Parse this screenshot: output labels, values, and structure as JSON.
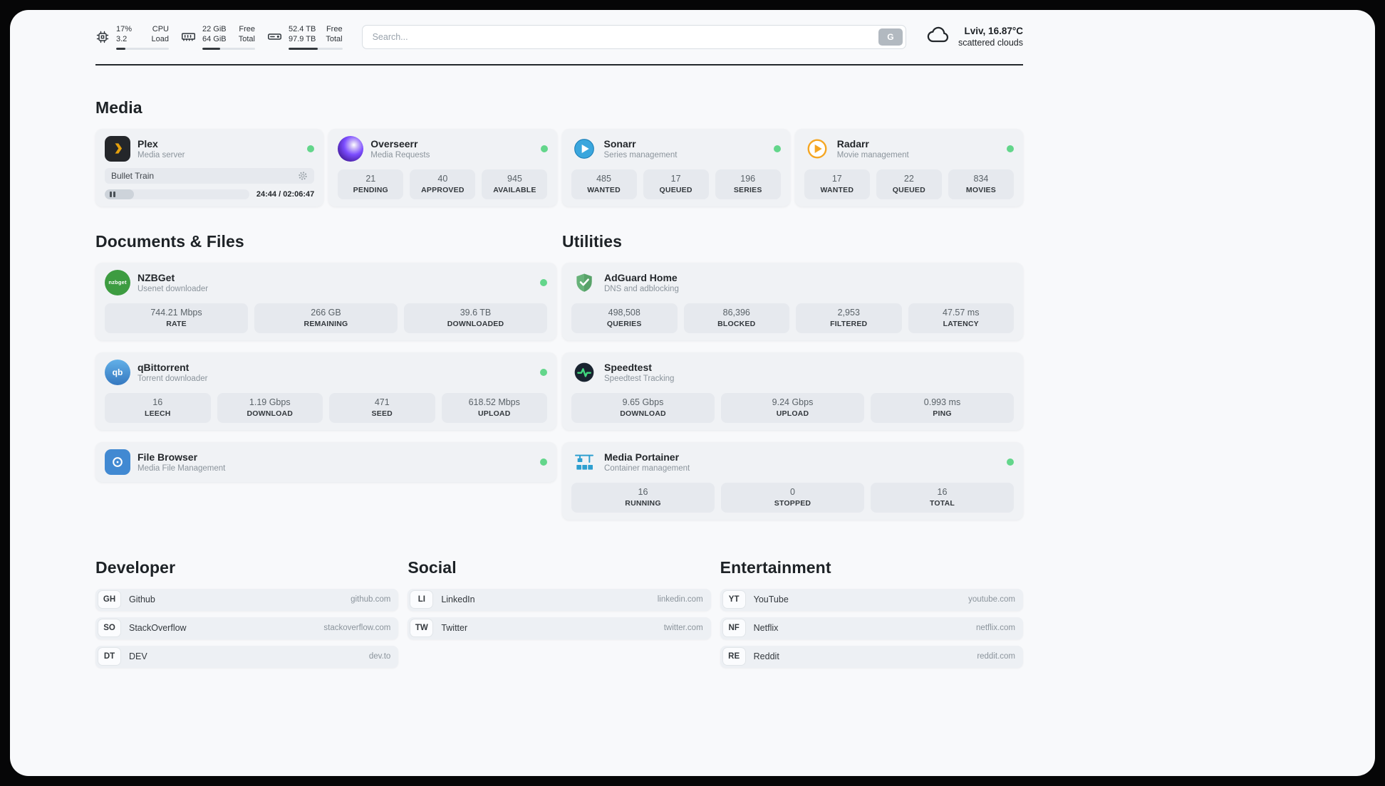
{
  "topbar": {
    "cpu": {
      "value_top": "17%",
      "value_bottom": "3.2",
      "label_top": "CPU",
      "label_bottom": "Load",
      "progress": 17
    },
    "ram": {
      "value_top": "22 GiB",
      "value_bottom": "64 GiB",
      "label_top": "Free",
      "label_bottom": "Total",
      "progress": 34
    },
    "disk": {
      "value_top": "52.4 TB",
      "value_bottom": "97.9 TB",
      "label_top": "Free",
      "label_bottom": "Total",
      "progress": 54
    },
    "search": {
      "placeholder": "Search...",
      "button_label": "G"
    },
    "weather": {
      "location": "Lviv, 16.87°C",
      "condition": "scattered clouds"
    }
  },
  "media": {
    "title": "Media",
    "plex": {
      "name": "Plex",
      "subtitle": "Media server",
      "now_playing": "Bullet Train",
      "time_display": "24:44 / 02:06:47",
      "progress": 20
    },
    "overseerr": {
      "name": "Overseerr",
      "subtitle": "Media Requests",
      "stats": [
        {
          "value": "21",
          "label": "PENDING"
        },
        {
          "value": "40",
          "label": "APPROVED"
        },
        {
          "value": "945",
          "label": "AVAILABLE"
        }
      ]
    },
    "sonarr": {
      "name": "Sonarr",
      "subtitle": "Series management",
      "stats": [
        {
          "value": "485",
          "label": "WANTED"
        },
        {
          "value": "17",
          "label": "QUEUED"
        },
        {
          "value": "196",
          "label": "SERIES"
        }
      ]
    },
    "radarr": {
      "name": "Radarr",
      "subtitle": "Movie management",
      "stats": [
        {
          "value": "17",
          "label": "WANTED"
        },
        {
          "value": "22",
          "label": "QUEUED"
        },
        {
          "value": "834",
          "label": "MOVIES"
        }
      ]
    }
  },
  "documents": {
    "title": "Documents & Files",
    "nzbget": {
      "name": "NZBGet",
      "subtitle": "Usenet downloader",
      "icon_text": "nzbget",
      "stats": [
        {
          "value": "744.21 Mbps",
          "label": "RATE"
        },
        {
          "value": "266 GB",
          "label": "REMAINING"
        },
        {
          "value": "39.6 TB",
          "label": "DOWNLOADED"
        }
      ]
    },
    "qbittorrent": {
      "name": "qBittorrent",
      "subtitle": "Torrent downloader",
      "icon_text": "qb",
      "stats": [
        {
          "value": "16",
          "label": "LEECH"
        },
        {
          "value": "1.19 Gbps",
          "label": "DOWNLOAD"
        },
        {
          "value": "471",
          "label": "SEED"
        },
        {
          "value": "618.52 Mbps",
          "label": "UPLOAD"
        }
      ]
    },
    "filebrowser": {
      "name": "File Browser",
      "subtitle": "Media File Management"
    }
  },
  "utilities": {
    "title": "Utilities",
    "adguard": {
      "name": "AdGuard Home",
      "subtitle": "DNS and adblocking",
      "stats": [
        {
          "value": "498,508",
          "label": "QUERIES"
        },
        {
          "value": "86,396",
          "label": "BLOCKED"
        },
        {
          "value": "2,953",
          "label": "FILTERED"
        },
        {
          "value": "47.57 ms",
          "label": "LATENCY"
        }
      ]
    },
    "speedtest": {
      "name": "Speedtest",
      "subtitle": "Speedtest Tracking",
      "stats": [
        {
          "value": "9.65 Gbps",
          "label": "DOWNLOAD"
        },
        {
          "value": "9.24 Gbps",
          "label": "UPLOAD"
        },
        {
          "value": "0.993 ms",
          "label": "PING"
        }
      ]
    },
    "portainer": {
      "name": "Media Portainer",
      "subtitle": "Container management",
      "stats": [
        {
          "value": "16",
          "label": "RUNNING"
        },
        {
          "value": "0",
          "label": "STOPPED"
        },
        {
          "value": "16",
          "label": "TOTAL"
        }
      ]
    }
  },
  "bookmarks": {
    "developer": {
      "title": "Developer",
      "items": [
        {
          "abbr": "GH",
          "name": "Github",
          "url": "github.com"
        },
        {
          "abbr": "SO",
          "name": "StackOverflow",
          "url": "stackoverflow.com"
        },
        {
          "abbr": "DT",
          "name": "DEV",
          "url": "dev.to"
        }
      ]
    },
    "social": {
      "title": "Social",
      "items": [
        {
          "abbr": "LI",
          "name": "LinkedIn",
          "url": "linkedin.com"
        },
        {
          "abbr": "TW",
          "name": "Twitter",
          "url": "twitter.com"
        }
      ]
    },
    "entertainment": {
      "title": "Entertainment",
      "items": [
        {
          "abbr": "YT",
          "name": "YouTube",
          "url": "youtube.com"
        },
        {
          "abbr": "NF",
          "name": "Netflix",
          "url": "netflix.com"
        },
        {
          "abbr": "RE",
          "name": "Reddit",
          "url": "reddit.com"
        }
      ]
    }
  },
  "colors": {
    "status_online": "#63d68b",
    "plex_accent": "#e5a00d"
  }
}
